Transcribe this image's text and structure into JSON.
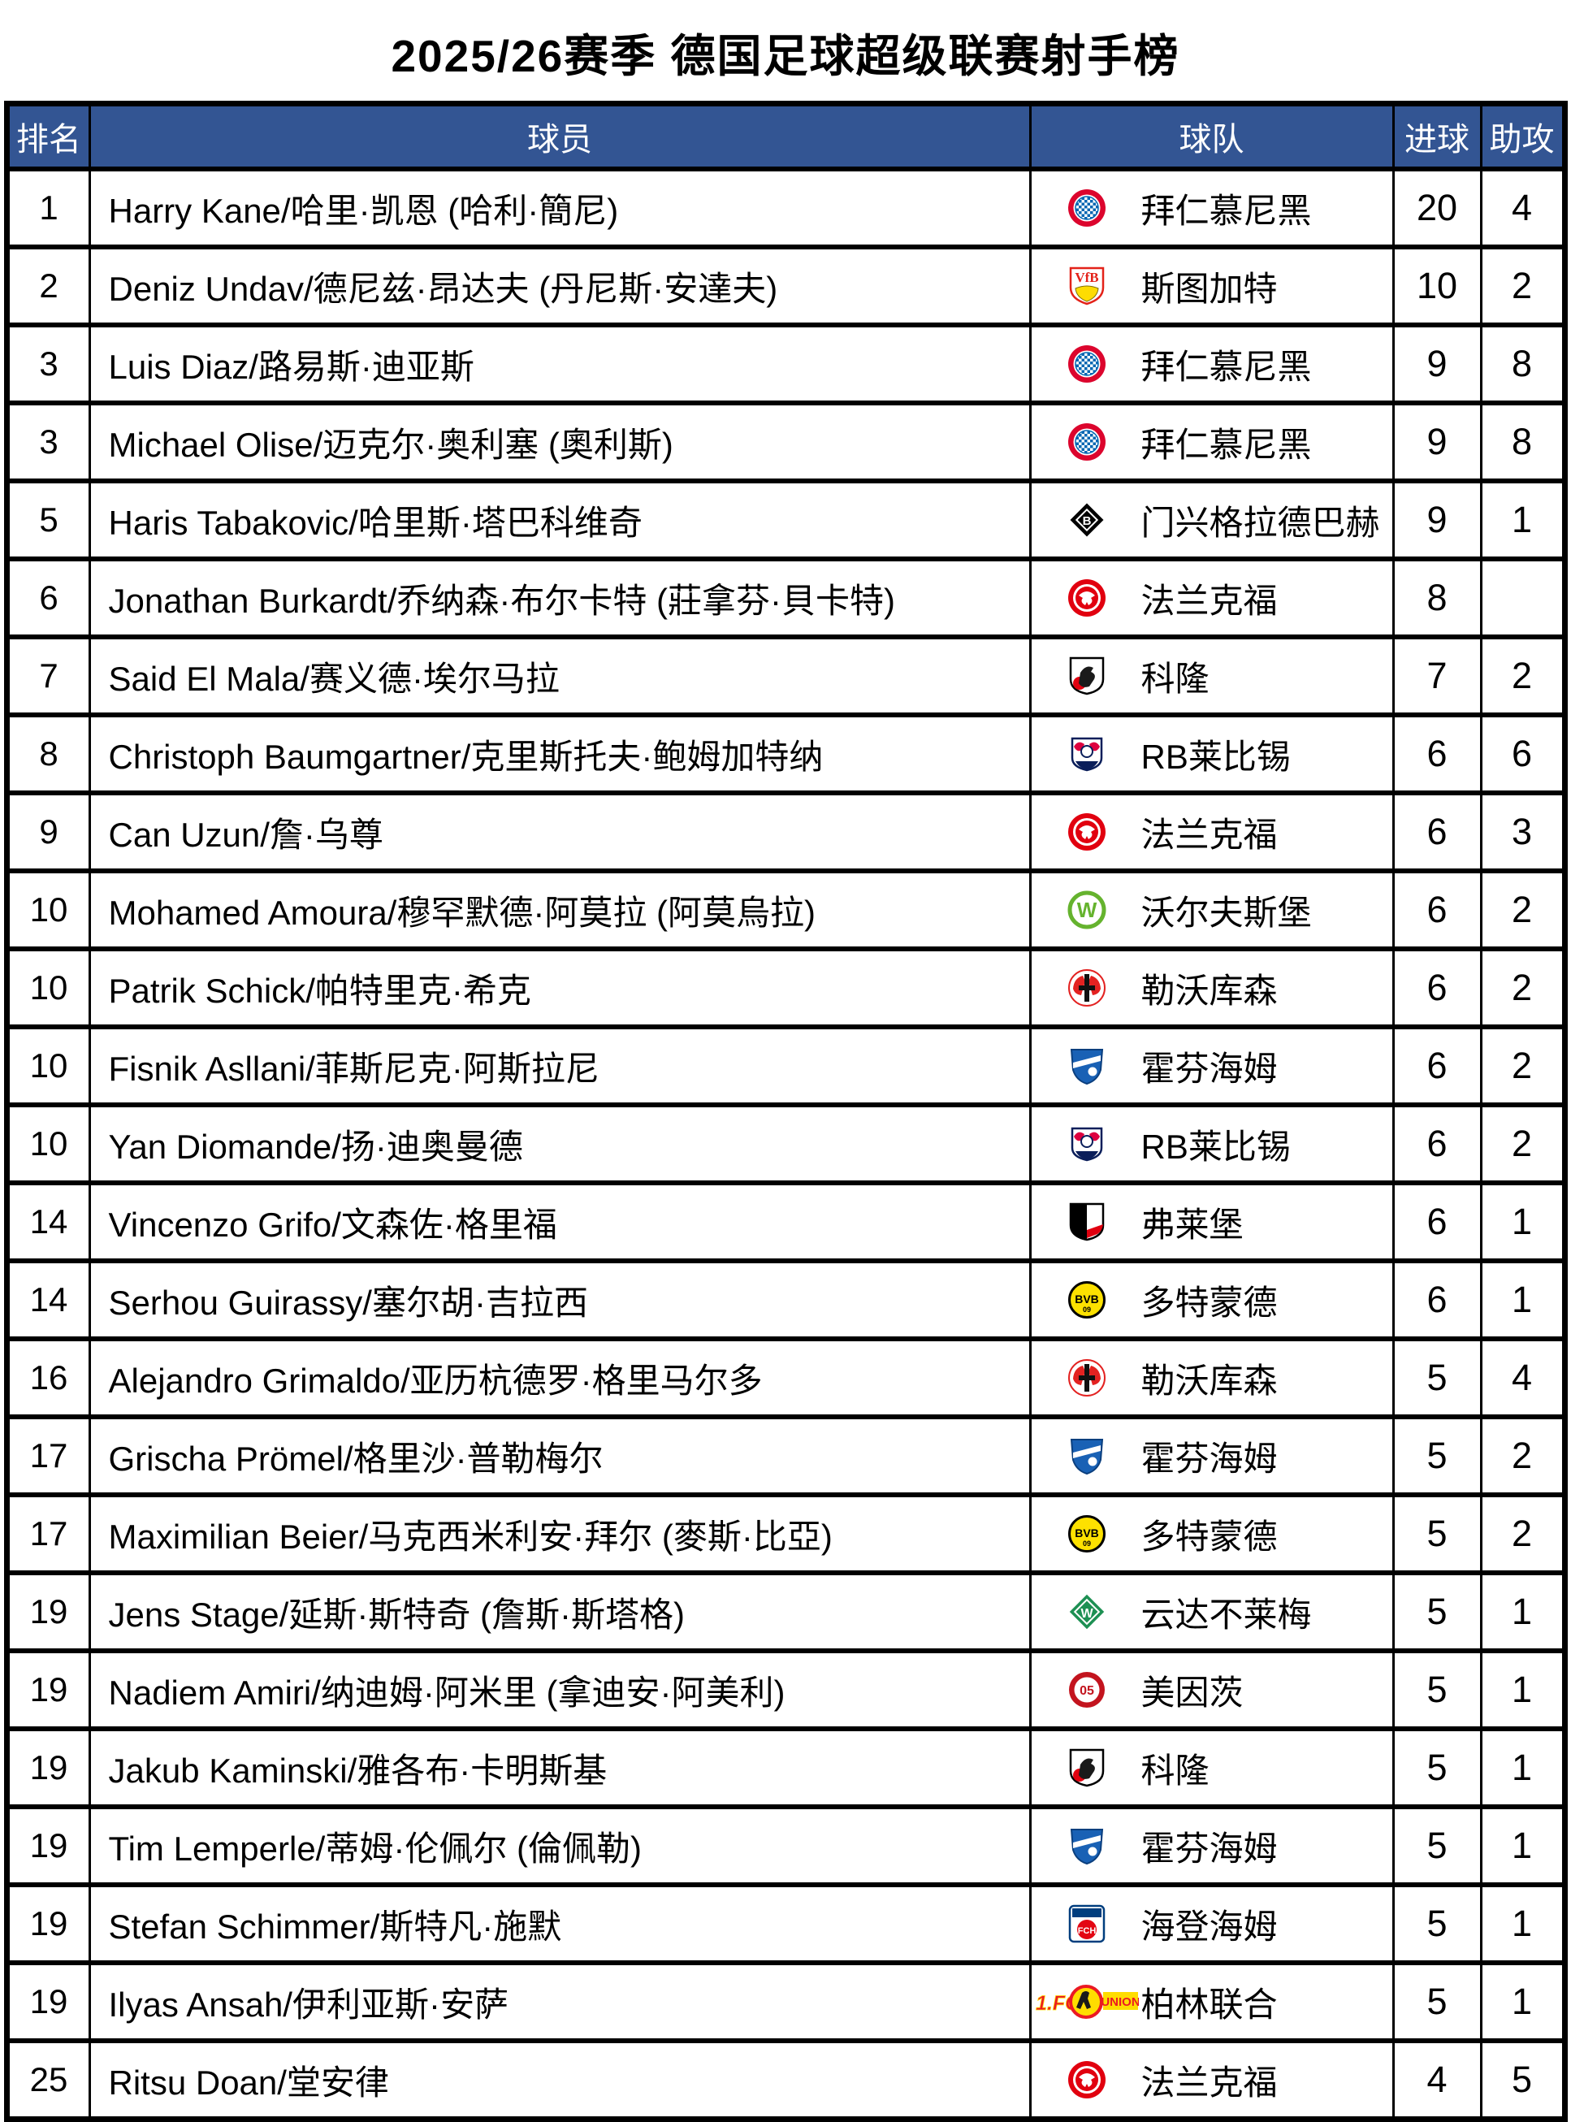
{
  "title": "2025/26赛季 德国足球超级联赛射手榜",
  "table": {
    "headers": {
      "rank": "排名",
      "player": "球员",
      "team": "球队",
      "goals": "进球",
      "assists": "助攻"
    },
    "rows": [
      {
        "rank": "1",
        "player": "Harry Kane/哈里·凯恩 (哈利·簡尼)",
        "team": "拜仁慕尼黑",
        "team_key": "bayern",
        "goals": "20",
        "assists": "4"
      },
      {
        "rank": "2",
        "player": "Deniz Undav/德尼兹·昂达夫 (丹尼斯·安達夫)",
        "team": "斯图加特",
        "team_key": "stuttgart",
        "goals": "10",
        "assists": "2"
      },
      {
        "rank": "3",
        "player": "Luis Diaz/路易斯·迪亚斯",
        "team": "拜仁慕尼黑",
        "team_key": "bayern",
        "goals": "9",
        "assists": "8"
      },
      {
        "rank": "3",
        "player": "Michael Olise/迈克尔·奥利塞 (奧利斯)",
        "team": "拜仁慕尼黑",
        "team_key": "bayern",
        "goals": "9",
        "assists": "8"
      },
      {
        "rank": "5",
        "player": "Haris Tabakovic/哈里斯·塔巴科维奇",
        "team": "门兴格拉德巴赫",
        "team_key": "gladbach",
        "goals": "9",
        "assists": "1"
      },
      {
        "rank": "6",
        "player": "Jonathan Burkardt/乔纳森·布尔卡特 (莊拿芬·貝卡特)",
        "team": "法兰克福",
        "team_key": "frankfurt",
        "goals": "8",
        "assists": ""
      },
      {
        "rank": "7",
        "player": "Said El Mala/赛义德·埃尔马拉",
        "team": "科隆",
        "team_key": "koln",
        "goals": "7",
        "assists": "2"
      },
      {
        "rank": "8",
        "player": "Christoph Baumgartner/克里斯托夫·鲍姆加特纳",
        "team": "RB莱比锡",
        "team_key": "leipzig",
        "goals": "6",
        "assists": "6"
      },
      {
        "rank": "9",
        "player": "Can Uzun/詹·乌尊",
        "team": "法兰克福",
        "team_key": "frankfurt",
        "goals": "6",
        "assists": "3"
      },
      {
        "rank": "10",
        "player": "Mohamed Amoura/穆罕默德·阿莫拉 (阿莫烏拉)",
        "team": "沃尔夫斯堡",
        "team_key": "wolfsburg",
        "goals": "6",
        "assists": "2"
      },
      {
        "rank": "10",
        "player": "Patrik Schick/帕特里克·希克",
        "team": "勒沃库森",
        "team_key": "leverkusen",
        "goals": "6",
        "assists": "2"
      },
      {
        "rank": "10",
        "player": "Fisnik Asllani/菲斯尼克·阿斯拉尼",
        "team": "霍芬海姆",
        "team_key": "hoffenheim",
        "goals": "6",
        "assists": "2"
      },
      {
        "rank": "10",
        "player": "Yan Diomande/扬·迪奥曼德",
        "team": "RB莱比锡",
        "team_key": "leipzig",
        "goals": "6",
        "assists": "2"
      },
      {
        "rank": "14",
        "player": "Vincenzo Grifo/文森佐·格里福",
        "team": "弗莱堡",
        "team_key": "freiburg",
        "goals": "6",
        "assists": "1"
      },
      {
        "rank": "14",
        "player": "Serhou Guirassy/塞尔胡·吉拉西",
        "team": "多特蒙德",
        "team_key": "dortmund",
        "goals": "6",
        "assists": "1"
      },
      {
        "rank": "16",
        "player": "Alejandro Grimaldo/亚历杭德罗·格里马尔多",
        "team": "勒沃库森",
        "team_key": "leverkusen",
        "goals": "5",
        "assists": "4"
      },
      {
        "rank": "17",
        "player": "Grischa Prömel/格里沙·普勒梅尔",
        "team": "霍芬海姆",
        "team_key": "hoffenheim",
        "goals": "5",
        "assists": "2"
      },
      {
        "rank": "17",
        "player": "Maximilian Beier/马克西米利安·拜尔 (麥斯·比亞)",
        "team": "多特蒙德",
        "team_key": "dortmund",
        "goals": "5",
        "assists": "2"
      },
      {
        "rank": "19",
        "player": "Jens Stage/延斯·斯特奇 (詹斯·斯塔格)",
        "team": "云达不莱梅",
        "team_key": "bremen",
        "goals": "5",
        "assists": "1"
      },
      {
        "rank": "19",
        "player": "Nadiem Amiri/纳迪姆·阿米里 (拿迪安·阿美利)",
        "team": "美因茨",
        "team_key": "mainz",
        "goals": "5",
        "assists": "1"
      },
      {
        "rank": "19",
        "player": "Jakub Kaminski/雅各布·卡明斯基",
        "team": "科隆",
        "team_key": "koln",
        "goals": "5",
        "assists": "1"
      },
      {
        "rank": "19",
        "player": "Tim Lemperle/蒂姆·伦佩尔 (倫佩勒)",
        "team": "霍芬海姆",
        "team_key": "hoffenheim",
        "goals": "5",
        "assists": "1"
      },
      {
        "rank": "19",
        "player": "Stefan Schimmer/斯特凡·施默",
        "team": "海登海姆",
        "team_key": "heidenheim",
        "goals": "5",
        "assists": "1"
      },
      {
        "rank": "19",
        "player": "Ilyas Ansah/伊利亚斯·安萨",
        "team": "柏林联合",
        "team_key": "union",
        "goals": "5",
        "assists": "1"
      },
      {
        "rank": "25",
        "player": "Ritsu Doan/堂安律",
        "team": "法兰克福",
        "team_key": "frankfurt",
        "goals": "4",
        "assists": "5"
      }
    ]
  },
  "colors": {
    "header_bg": "#335593",
    "header_text": "#FFFFFF",
    "border": "#000000",
    "body_bg": "#FFFFFF"
  }
}
